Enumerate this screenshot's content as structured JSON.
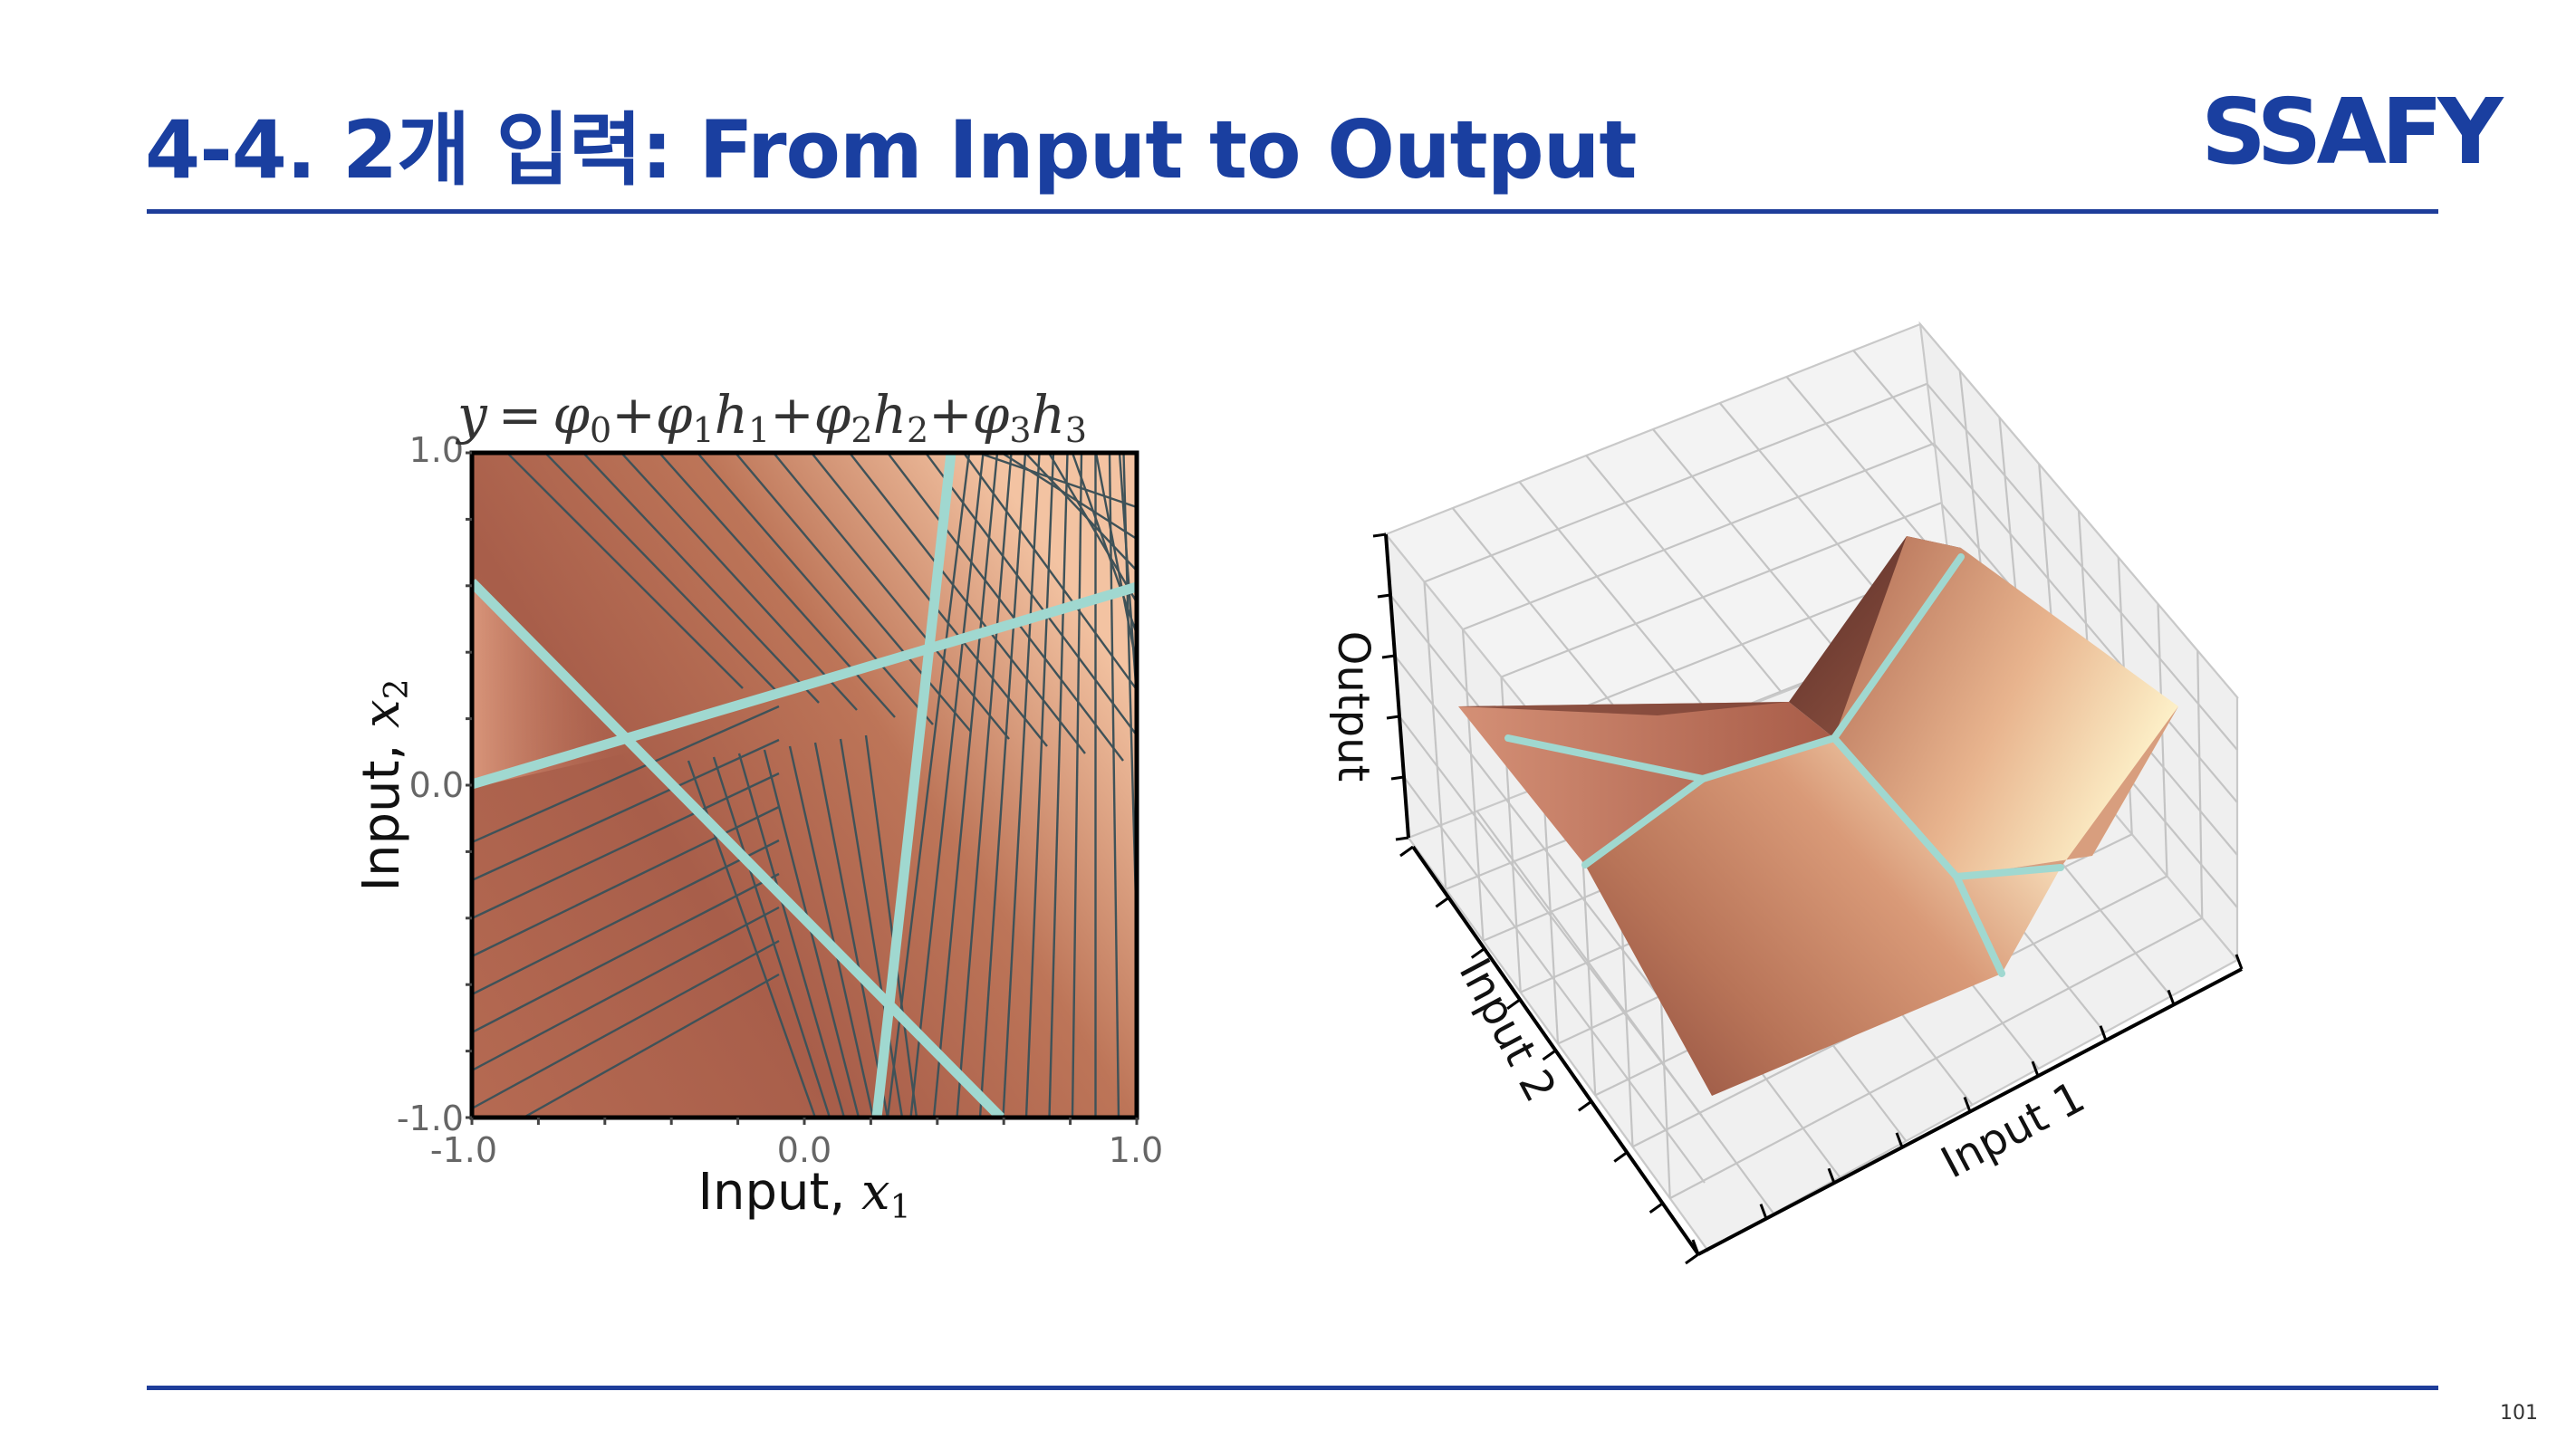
{
  "slide": {
    "title": "4-4. 2개 입력: From Input to Output",
    "page_number": "101",
    "logo_text": "SSAFY"
  },
  "heatmap": {
    "equation_y": "y",
    "equation_eq": "=",
    "terms": [
      {
        "phi": "φ",
        "sub": "0",
        "h": "",
        "hsub": ""
      },
      {
        "phi": "φ",
        "sub": "1",
        "h": "h",
        "hsub": "1"
      },
      {
        "phi": "φ",
        "sub": "2",
        "h": "h",
        "hsub": "2"
      },
      {
        "phi": "φ",
        "sub": "3",
        "h": "h",
        "hsub": "3"
      }
    ],
    "x_axis_prefix": "Input, ",
    "x_axis_var": "x",
    "x_axis_sub": "1",
    "y_axis_prefix": "Input, ",
    "y_axis_var": "x",
    "y_axis_sub": "2",
    "x_ticks": [
      "-1.0",
      "0.0",
      "1.0"
    ],
    "y_ticks": [
      "1.0",
      "0.0",
      "-1.0"
    ],
    "colors": {
      "joint_lines": "#a0d8d0",
      "contours": "#3f5258",
      "fill_low": "#a8604a",
      "fill_high": "#f2c0a0"
    }
  },
  "surface": {
    "z_label": "Output",
    "input1_label": "Input 1",
    "input2_label": "Input 2"
  },
  "colors": {
    "brand_blue": "#1a3fa0"
  }
}
